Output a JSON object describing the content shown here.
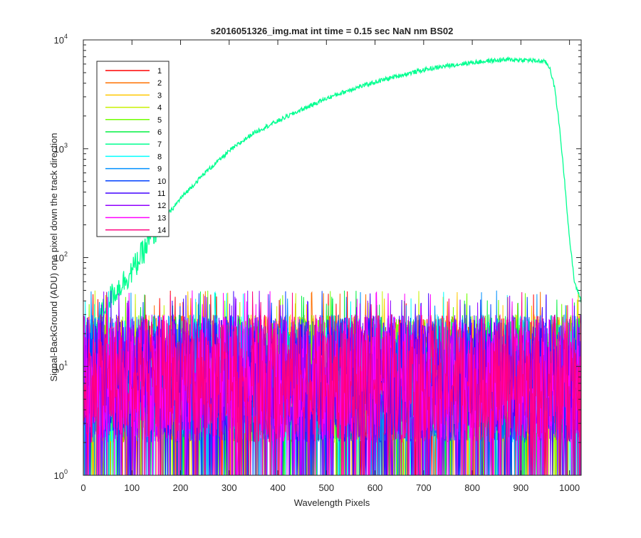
{
  "chart_data": {
    "type": "line",
    "title": "s2016051326_img.mat int time = 0.15 sec  NaN nm BS02",
    "xlabel": "Wavelength Pixels",
    "ylabel": "Signal-BackGround (ADU) one pixel down the track direction",
    "xlim": [
      0,
      1024
    ],
    "ylim": [
      1,
      10000
    ],
    "yscale": "log",
    "grid": false,
    "legend_position": "top-left",
    "x_ticks": [
      "0",
      "100",
      "200",
      "300",
      "400",
      "500",
      "600",
      "700",
      "800",
      "900",
      "1000"
    ],
    "y_ticks": [
      {
        "base": "10",
        "exp": "0"
      },
      {
        "base": "10",
        "exp": "1"
      },
      {
        "base": "10",
        "exp": "2"
      },
      {
        "base": "10",
        "exp": "3"
      },
      {
        "base": "10",
        "exp": "4"
      }
    ],
    "series": [
      {
        "name": "1",
        "color": "#ff0000",
        "kind": "noise",
        "typical": [
          2,
          30
        ]
      },
      {
        "name": "2",
        "color": "#ff7000",
        "kind": "noise",
        "typical": [
          2,
          30
        ]
      },
      {
        "name": "3",
        "color": "#ffc800",
        "kind": "noise",
        "typical": [
          2,
          30
        ]
      },
      {
        "name": "4",
        "color": "#c8f000",
        "kind": "noise",
        "typical": [
          2,
          30
        ]
      },
      {
        "name": "5",
        "color": "#70ff00",
        "kind": "noise",
        "typical": [
          2,
          30
        ]
      },
      {
        "name": "6",
        "color": "#00f040",
        "kind": "noise",
        "typical": [
          2,
          30
        ]
      },
      {
        "name": "7",
        "color": "#00ff90",
        "kind": "signal",
        "x": [
          0,
          20,
          50,
          100,
          150,
          200,
          250,
          300,
          350,
          400,
          450,
          500,
          550,
          600,
          650,
          700,
          750,
          800,
          850,
          880,
          920,
          950,
          960,
          970,
          980,
          990,
          1000,
          1010,
          1020,
          1024
        ],
        "values": [
          12,
          20,
          40,
          75,
          180,
          350,
          600,
          950,
          1400,
          1800,
          2300,
          2900,
          3500,
          4100,
          4700,
          5300,
          5800,
          6200,
          6500,
          6600,
          6500,
          6300,
          5500,
          3500,
          1500,
          500,
          150,
          60,
          45,
          40
        ]
      },
      {
        "name": "8",
        "color": "#00ffff",
        "kind": "noise",
        "typical": [
          2,
          30
        ]
      },
      {
        "name": "9",
        "color": "#0090ff",
        "kind": "noise",
        "typical": [
          2,
          30
        ]
      },
      {
        "name": "10",
        "color": "#0040ff",
        "kind": "noise",
        "typical": [
          2,
          30
        ]
      },
      {
        "name": "11",
        "color": "#4000ff",
        "kind": "noise",
        "typical": [
          2,
          30
        ]
      },
      {
        "name": "12",
        "color": "#9000ff",
        "kind": "noise",
        "typical": [
          2,
          30
        ]
      },
      {
        "name": "13",
        "color": "#ff00ff",
        "kind": "noise",
        "typical": [
          2,
          30
        ]
      },
      {
        "name": "14",
        "color": "#ff0080",
        "kind": "noise",
        "typical": [
          2,
          30
        ]
      }
    ]
  }
}
